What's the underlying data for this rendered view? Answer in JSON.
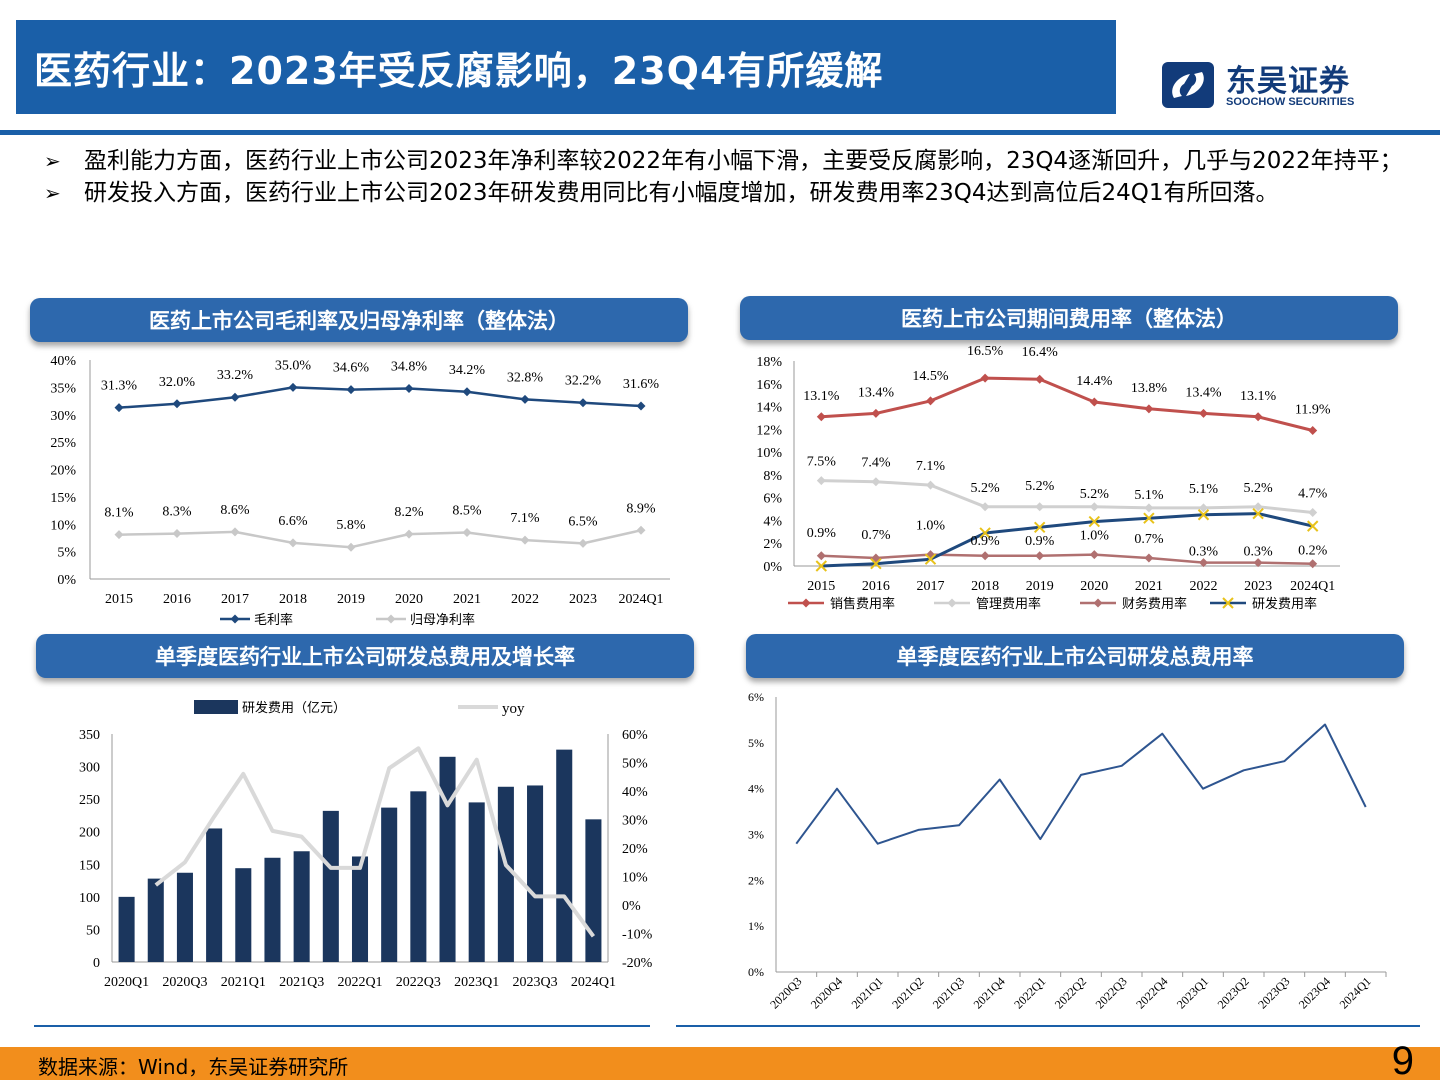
{
  "header": {
    "title": "医药行业：2023年受反腐影响，23Q4有所缓解",
    "logo_cn": "东吴证券",
    "logo_en": "SOOCHOW SECURITIES"
  },
  "bullets": [
    "盈利能力方面，医药行业上市公司2023年净利率较2022年有小幅下滑，主要受反腐影响，23Q4逐渐回升，几乎与2022年持平；",
    "研发投入方面，医药行业上市公司2023年研发费用同比有小幅度增加，研发费用率23Q4达到高位后24Q1有所回落。"
  ],
  "panels": {
    "p1": "医药上市公司毛利率及归母净利率（整体法）",
    "p2": "医药上市公司期间费用率（整体法）",
    "p3": "单季度医药行业上市公司研发总费用及增长率",
    "p4": "单季度医药行业上市公司研发总费用率"
  },
  "footer": {
    "source": "数据来源：Wind，东吴证券研究所",
    "page": "9"
  },
  "chart_data": [
    {
      "type": "line",
      "title": "医药上市公司毛利率及归母净利率（整体法）",
      "categories": [
        "2015",
        "2016",
        "2017",
        "2018",
        "2019",
        "2020",
        "2021",
        "2022",
        "2023",
        "2024Q1"
      ],
      "ylim": [
        0,
        40
      ],
      "yticks": [
        "0%",
        "5%",
        "10%",
        "15%",
        "20%",
        "25%",
        "30%",
        "35%",
        "40%"
      ],
      "series": [
        {
          "name": "毛利率",
          "color": "#1f497d",
          "values": [
            31.3,
            32.0,
            33.2,
            35.0,
            34.6,
            34.8,
            34.2,
            32.8,
            32.2,
            31.6
          ],
          "labels": [
            "31.3%",
            "32.0%",
            "33.2%",
            "35.0%",
            "34.6%",
            "34.8%",
            "34.2%",
            "32.8%",
            "32.2%",
            "31.6%"
          ]
        },
        {
          "name": "归母净利率",
          "color": "#c8c8c8",
          "values": [
            8.1,
            8.3,
            8.6,
            6.6,
            5.8,
            8.2,
            8.5,
            7.1,
            6.5,
            8.9
          ],
          "labels": [
            "8.1%",
            "8.3%",
            "8.6%",
            "6.6%",
            "5.8%",
            "8.2%",
            "8.5%",
            "7.1%",
            "6.5%",
            "8.9%"
          ]
        }
      ],
      "legend": "bottom"
    },
    {
      "type": "line",
      "title": "医药上市公司期间费用率（整体法）",
      "categories": [
        "2015",
        "2016",
        "2017",
        "2018",
        "2019",
        "2020",
        "2021",
        "2022",
        "2023",
        "2024Q1"
      ],
      "ylim": [
        0,
        18
      ],
      "yticks": [
        "0%",
        "2%",
        "4%",
        "6%",
        "8%",
        "10%",
        "12%",
        "14%",
        "16%",
        "18%"
      ],
      "series": [
        {
          "name": "销售费用率",
          "color": "#c0504d",
          "values": [
            13.1,
            13.4,
            14.5,
            16.5,
            16.4,
            14.4,
            13.8,
            13.4,
            13.1,
            11.9
          ],
          "labels": [
            "13.1%",
            "13.4%",
            "14.5%",
            "16.5%",
            "16.4%",
            "14.4%",
            "13.8%",
            "13.4%",
            "13.1%",
            "11.9%"
          ]
        },
        {
          "name": "管理费用率",
          "color": "#d0d0d0",
          "values": [
            7.5,
            7.4,
            7.1,
            5.2,
            5.2,
            5.2,
            5.1,
            5.1,
            5.2,
            4.7
          ],
          "labels": [
            "7.5%",
            "7.4%",
            "7.1%",
            "5.2%",
            "5.2%",
            "5.2%",
            "5.1%",
            "5.1%",
            "5.2%",
            "4.7%"
          ]
        },
        {
          "name": "财务费用率",
          "color": "#b07070",
          "values": [
            0.9,
            0.7,
            1.0,
            0.9,
            0.9,
            1.0,
            0.7,
            0.3,
            0.3,
            0.2
          ],
          "labels": [
            "0.9%",
            "0.7%",
            "1.0%",
            "0.9%",
            "0.9%",
            "1.0%",
            "0.7%",
            "0.3%",
            "0.3%",
            "0.2%"
          ]
        },
        {
          "name": "研发费用率",
          "color": "#1f497d",
          "values": [
            0.0,
            0.2,
            0.6,
            2.9,
            3.4,
            3.9,
            4.2,
            4.5,
            4.6,
            3.5
          ]
        }
      ],
      "legend": "bottom"
    },
    {
      "type": "bar",
      "title": "单季度医药行业上市公司研发总费用及增长率",
      "categories": [
        "2020Q1",
        "2020Q2",
        "2020Q3",
        "2020Q4",
        "2021Q1",
        "2021Q2",
        "2021Q3",
        "2021Q4",
        "2022Q1",
        "2022Q2",
        "2022Q3",
        "2022Q4",
        "2023Q1",
        "2023Q2",
        "2023Q3",
        "2023Q4",
        "2024Q1"
      ],
      "xtick_labels": [
        "2020Q1",
        "2020Q3",
        "2021Q1",
        "2021Q3",
        "2022Q1",
        "2022Q3",
        "2023Q1",
        "2023Q3",
        "2024Q1"
      ],
      "ylim": [
        0,
        350
      ],
      "yticks": [
        "0",
        "50",
        "100",
        "150",
        "200",
        "250",
        "300",
        "350"
      ],
      "y2lim": [
        -20,
        60
      ],
      "y2ticks": [
        "-20%",
        "-10%",
        "0%",
        "10%",
        "20%",
        "30%",
        "40%",
        "50%",
        "60%"
      ],
      "series": [
        {
          "name": "研发费用（亿元）",
          "color": "#1b365d",
          "axis": "left",
          "values": [
            100,
            128,
            137,
            205,
            144,
            160,
            170,
            232,
            162,
            237,
            262,
            315,
            245,
            269,
            271,
            326,
            219
          ]
        },
        {
          "name": "yoy",
          "color": "#d9d9d9",
          "axis": "right",
          "values": [
            null,
            7,
            15,
            31,
            46,
            26,
            24,
            13,
            13,
            48,
            55,
            35,
            51,
            14,
            3,
            3,
            -11
          ]
        }
      ],
      "legend": "top"
    },
    {
      "type": "line",
      "title": "单季度医药行业上市公司研发总费用率",
      "categories": [
        "2020Q3",
        "2020Q4",
        "2021Q1",
        "2021Q2",
        "2021Q3",
        "2021Q4",
        "2022Q1",
        "2022Q2",
        "2022Q3",
        "2022Q4",
        "2023Q1",
        "2023Q2",
        "2023Q3",
        "2023Q4",
        "2024Q1"
      ],
      "ylim": [
        0,
        6
      ],
      "yticks": [
        "0%",
        "1%",
        "2%",
        "3%",
        "4%",
        "5%",
        "6%"
      ],
      "series": [
        {
          "color": "#2e5590",
          "values": [
            2.8,
            4.0,
            2.8,
            3.1,
            3.2,
            4.2,
            2.9,
            4.3,
            4.5,
            5.2,
            4.0,
            4.4,
            4.6,
            5.4,
            3.6
          ]
        }
      ]
    }
  ]
}
